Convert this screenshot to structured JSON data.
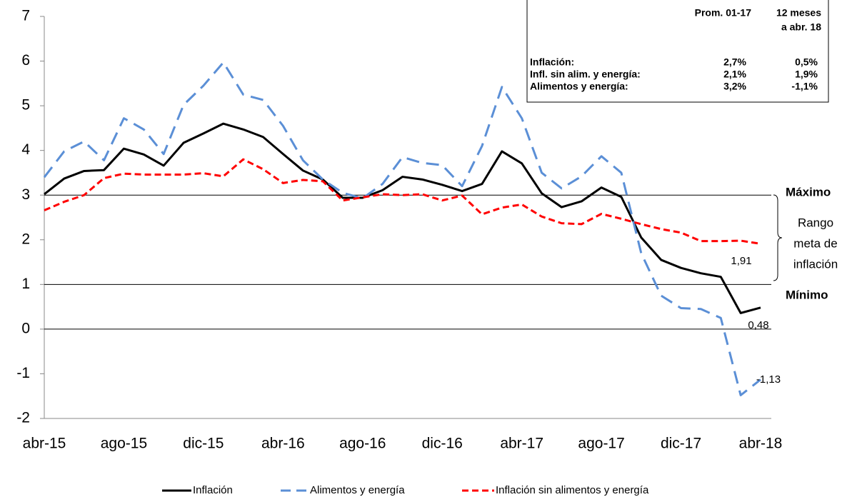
{
  "chart_data": {
    "type": "line",
    "categories": [
      "abr-15",
      null,
      null,
      null,
      "ago-15",
      null,
      null,
      null,
      "dic-15",
      null,
      null,
      null,
      "abr-16",
      null,
      null,
      null,
      "ago-16",
      null,
      null,
      null,
      "dic-16",
      null,
      null,
      null,
      "abr-17",
      null,
      null,
      null,
      "ago-17",
      null,
      null,
      null,
      "dic-17",
      null,
      null,
      null,
      "abr-18"
    ],
    "series": [
      {
        "name": "Inflación",
        "color": "#000000",
        "dash": "solid",
        "end_label": "0,48",
        "values": [
          3.02,
          3.37,
          3.54,
          3.56,
          4.04,
          3.91,
          3.66,
          4.17,
          4.38,
          4.6,
          4.47,
          4.3,
          3.92,
          3.55,
          3.35,
          2.94,
          2.94,
          3.11,
          3.41,
          3.35,
          3.23,
          3.09,
          3.25,
          3.98,
          3.71,
          3.04,
          2.73,
          2.86,
          3.17,
          2.96,
          2.05,
          1.55,
          1.37,
          1.25,
          1.17,
          0.36,
          0.48
        ]
      },
      {
        "name": "Alimentos y energía",
        "color": "#5b8fd6",
        "dash": "dashed",
        "end_label": "-1,13",
        "values": [
          3.4,
          3.98,
          4.2,
          3.78,
          4.72,
          4.47,
          3.92,
          5.02,
          5.45,
          5.97,
          5.25,
          5.13,
          4.55,
          3.78,
          3.35,
          3.05,
          2.93,
          3.25,
          3.85,
          3.72,
          3.67,
          3.2,
          4.1,
          5.42,
          4.72,
          3.5,
          3.15,
          3.42,
          3.87,
          3.5,
          1.7,
          0.75,
          0.47,
          0.45,
          0.25,
          -1.48,
          -1.13
        ]
      },
      {
        "name": "Inflación sin alimentos y energía",
        "color": "#ff0000",
        "dash": "dashed",
        "end_label": "1,91",
        "values": [
          2.66,
          2.85,
          3.0,
          3.38,
          3.48,
          3.46,
          3.46,
          3.46,
          3.49,
          3.42,
          3.8,
          3.58,
          3.27,
          3.34,
          3.31,
          2.88,
          2.95,
          3.02,
          3.0,
          3.02,
          2.88,
          2.99,
          2.57,
          2.72,
          2.79,
          2.52,
          2.37,
          2.35,
          2.58,
          2.47,
          2.35,
          2.24,
          2.16,
          1.97,
          1.97,
          1.98,
          1.91
        ]
      }
    ],
    "ylim": [
      -2,
      7
    ],
    "yticks": [
      -2,
      -1,
      0,
      1,
      2,
      3,
      4,
      5,
      6,
      7
    ],
    "reference_lines": [
      0,
      1,
      3
    ],
    "legend": "bottom",
    "annotations": {
      "max": "Máximo",
      "min": "Mínimo",
      "range": [
        "Rango",
        "meta de",
        "inflación"
      ]
    },
    "table": {
      "headers": [
        [
          "Prom. 01-17"
        ],
        [
          "12 meses",
          "a abr. 18"
        ]
      ],
      "rows": [
        [
          "Inflación:",
          "2,7%",
          "0,5%"
        ],
        [
          "Infl. sin alim. y energía:",
          "2,1%",
          "1,9%"
        ],
        [
          "Alimentos y energía:",
          "3,2%",
          "-1,1%"
        ]
      ]
    }
  }
}
